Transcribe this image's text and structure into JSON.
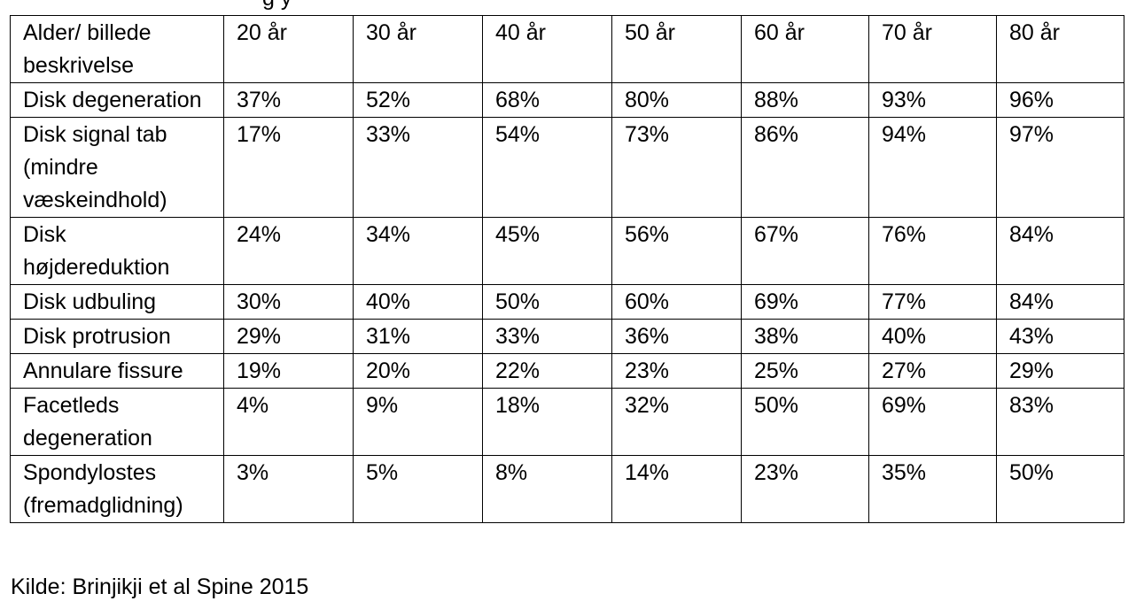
{
  "header_fragment": "g                                         y",
  "table": {
    "header": {
      "label": "Alder/ billede beskrivelse",
      "columns": [
        "20 år",
        "30 år",
        "40 år",
        "50 år",
        "60 år",
        "70 år",
        "80 år"
      ]
    },
    "rows": [
      {
        "label": "Disk degeneration",
        "values": [
          "37%",
          "52%",
          "68%",
          "80%",
          "88%",
          "93%",
          "96%"
        ]
      },
      {
        "label": "Disk signal tab (mindre væskeindhold)",
        "values": [
          "17%",
          "33%",
          "54%",
          "73%",
          "86%",
          "94%",
          "97%"
        ]
      },
      {
        "label": "Disk højdereduktion",
        "values": [
          "24%",
          "34%",
          "45%",
          "56%",
          "67%",
          "76%",
          "84%"
        ]
      },
      {
        "label": "Disk udbuling",
        "values": [
          "30%",
          "40%",
          "50%",
          "60%",
          "69%",
          "77%",
          "84%"
        ]
      },
      {
        "label": "Disk protrusion",
        "values": [
          "29%",
          "31%",
          "33%",
          "36%",
          "38%",
          "40%",
          "43%"
        ]
      },
      {
        "label": "Annulare fissure",
        "values": [
          "19%",
          "20%",
          "22%",
          "23%",
          "25%",
          "27%",
          "29%"
        ]
      },
      {
        "label": "Facetleds degeneration",
        "values": [
          "4%",
          "9%",
          "18%",
          "32%",
          "50%",
          "69%",
          "83%"
        ]
      },
      {
        "label": "Spondylostes (fremadglidning)",
        "values": [
          "3%",
          "5%",
          "8%",
          "14%",
          "23%",
          "35%",
          "50%"
        ]
      }
    ]
  },
  "source": "Kilde: Brinjikji et al Spine 2015"
}
